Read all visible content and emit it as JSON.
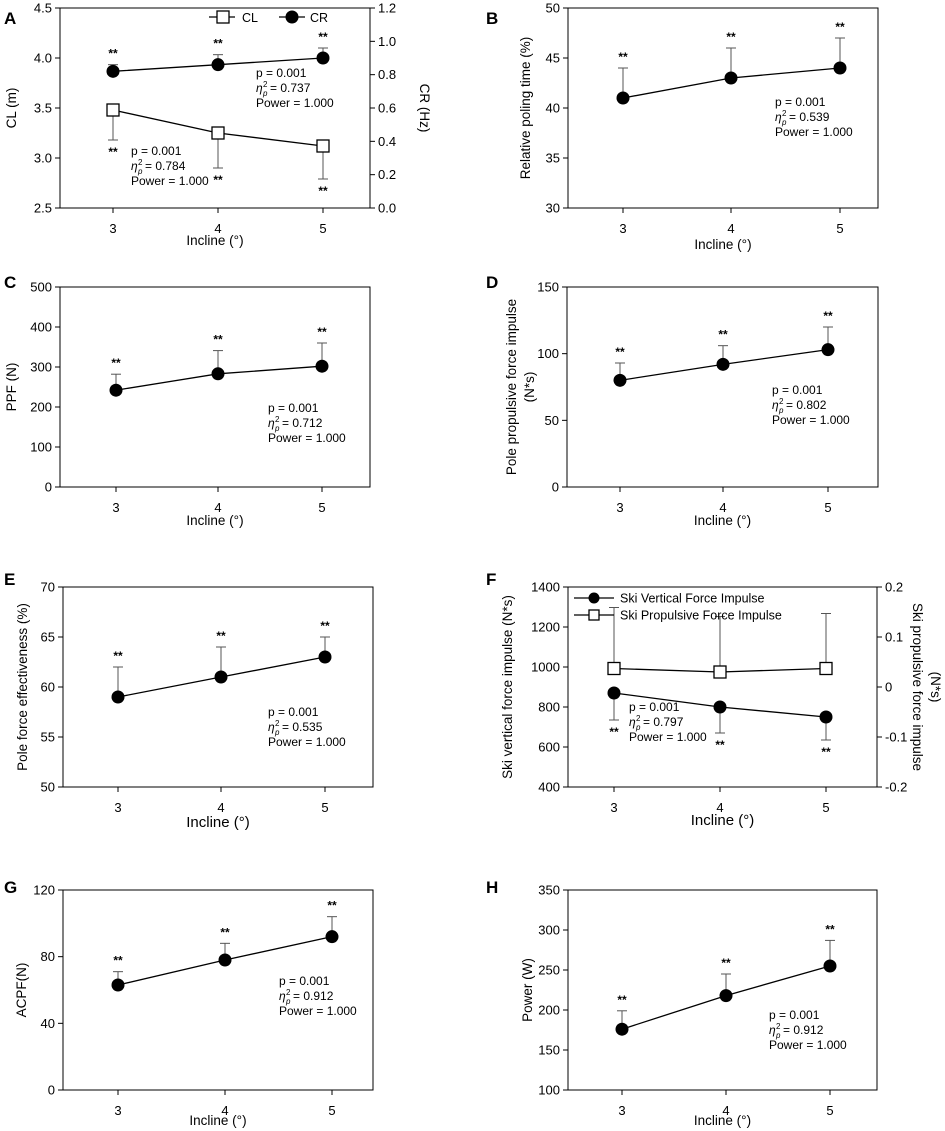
{
  "chart_data": [
    {
      "id": "A",
      "type": "line",
      "letter": "A",
      "xlabel": "Incline (°)",
      "ylabel": "CL (m)",
      "y2label": "CR (Hz)",
      "x": [
        3,
        4,
        5
      ],
      "ylim": [
        2.5,
        4.5
      ],
      "yticks": [
        2.5,
        3.0,
        3.5,
        4.0,
        4.5
      ],
      "ytick_labels": [
        "2.5",
        "3.0",
        "3.5",
        "4.0",
        "4.5"
      ],
      "y2lim": [
        0.0,
        1.2
      ],
      "y2ticks": [
        0.0,
        0.2,
        0.4,
        0.6,
        0.8,
        1.0,
        1.2
      ],
      "y2tick_labels": [
        "0.0",
        "0.2",
        "0.4",
        "0.6",
        "0.8",
        "1.0",
        "1.2"
      ],
      "legend": [
        "CL",
        "CR"
      ],
      "series": [
        {
          "name": "CL",
          "marker": "square",
          "axis": "y",
          "values": [
            3.48,
            3.25,
            3.12
          ],
          "error": [
            0.3,
            0.35,
            0.33
          ],
          "error_dir": "down",
          "sig": [
            "**",
            "**",
            "**"
          ]
        },
        {
          "name": "CR",
          "marker": "circle",
          "axis": "y2",
          "values": [
            0.82,
            0.86,
            0.9
          ],
          "error": [
            0.04,
            0.06,
            0.06
          ],
          "error_dir": "up",
          "sig": [
            "**",
            "**",
            "**"
          ]
        }
      ],
      "stats": [
        {
          "p": "p = 0.001",
          "eta": "= 0.737",
          "power": "Power = 1.000"
        },
        {
          "p": "p = 0.001",
          "eta": "= 0.784",
          "power": "Power = 1.000"
        }
      ]
    },
    {
      "id": "B",
      "type": "line",
      "letter": "B",
      "xlabel": "Incline (°)",
      "ylabel": "Relative poling time (%)",
      "x": [
        3,
        4,
        5
      ],
      "ylim": [
        30,
        50
      ],
      "yticks": [
        30,
        35,
        40,
        45,
        50
      ],
      "ytick_labels": [
        "30",
        "35",
        "40",
        "45",
        "50"
      ],
      "series": [
        {
          "name": "Relative poling time",
          "marker": "circle",
          "axis": "y",
          "values": [
            41,
            43,
            44
          ],
          "error": [
            3,
            3,
            3
          ],
          "error_dir": "up",
          "sig": [
            "**",
            "**",
            "**"
          ]
        }
      ],
      "stats": [
        {
          "p": "p = 0.001",
          "eta": "= 0.539",
          "power": "Power = 1.000"
        }
      ]
    },
    {
      "id": "C",
      "type": "line",
      "letter": "C",
      "xlabel": "Incline (°)",
      "ylabel": "PPF (N)",
      "x": [
        3,
        4,
        5
      ],
      "ylim": [
        0,
        500
      ],
      "yticks": [
        0,
        100,
        200,
        300,
        400,
        500
      ],
      "ytick_labels": [
        "0",
        "100",
        "200",
        "300",
        "400",
        "500"
      ],
      "series": [
        {
          "name": "PPF",
          "marker": "circle",
          "axis": "y",
          "values": [
            242,
            283,
            302
          ],
          "error": [
            40,
            58,
            58
          ],
          "error_dir": "up",
          "sig": [
            "**",
            "**",
            "**"
          ]
        }
      ],
      "stats": [
        {
          "p": "p = 0.001",
          "eta": "= 0.712",
          "power": "Power = 1.000"
        }
      ]
    },
    {
      "id": "D",
      "type": "line",
      "letter": "D",
      "xlabel": "Incline (°)",
      "ylabel": "Pole propulsive force impulse",
      "ylabel2": "(N*s)",
      "x": [
        3,
        4,
        5
      ],
      "ylim": [
        0,
        150
      ],
      "yticks": [
        0,
        50,
        100,
        150
      ],
      "ytick_labels": [
        "0",
        "50",
        "100",
        "150"
      ],
      "series": [
        {
          "name": "Pole propulsive force impulse",
          "marker": "circle",
          "axis": "y",
          "values": [
            80,
            92,
            103
          ],
          "error": [
            13,
            14,
            17
          ],
          "error_dir": "up",
          "sig": [
            "**",
            "**",
            "**"
          ]
        }
      ],
      "stats": [
        {
          "p": "p = 0.001",
          "eta": "= 0.802",
          "power": "Power = 1.000"
        }
      ]
    },
    {
      "id": "E",
      "type": "line",
      "letter": "E",
      "xlabel": "Incline (°)",
      "ylabel": "Pole force effectiveness (%)",
      "x": [
        3,
        4,
        5
      ],
      "ylim": [
        50,
        70
      ],
      "yticks": [
        50,
        55,
        60,
        65,
        70
      ],
      "ytick_labels": [
        "50",
        "55",
        "60",
        "65",
        "70"
      ],
      "series": [
        {
          "name": "Pole force effectiveness",
          "marker": "circle",
          "axis": "y",
          "values": [
            59,
            61,
            63
          ],
          "error": [
            3,
            3,
            2
          ],
          "error_dir": "up",
          "sig": [
            "**",
            "**",
            "**"
          ]
        }
      ],
      "stats": [
        {
          "p": "p = 0.001",
          "eta": "= 0.535",
          "power": "Power = 1.000"
        }
      ]
    },
    {
      "id": "F",
      "type": "line",
      "letter": "F",
      "xlabel": "Incline (°)",
      "ylabel": "Ski vertical force impulse (N*s)",
      "y2label": "Ski propulsive force impulse",
      "y2label2": "(N*s)",
      "x": [
        3,
        4,
        5
      ],
      "ylim": [
        400,
        1400
      ],
      "yticks": [
        400,
        600,
        800,
        1000,
        1200,
        1400
      ],
      "ytick_labels": [
        "400",
        "600",
        "800",
        "1000",
        "1200",
        "1400"
      ],
      "y2lim": [
        -0.2,
        0.2
      ],
      "y2ticks": [
        -0.2,
        -0.1,
        0,
        0.1,
        0.2
      ],
      "y2tick_labels": [
        "-0.2",
        "-0.1",
        "0",
        "0.1",
        "0.2"
      ],
      "legend": [
        "Ski Vertical Force Impulse",
        "Ski Propulsive Force Impulse"
      ],
      "series": [
        {
          "name": "Ski Vertical Force Impulse",
          "marker": "circle",
          "axis": "y",
          "values": [
            870,
            800,
            750
          ],
          "error": [
            135,
            130,
            115
          ],
          "error_dir": "down",
          "sig": [
            "**",
            "**",
            "**"
          ]
        },
        {
          "name": "Ski Propulsive Force Impulse",
          "marker": "square",
          "axis": "y2",
          "values": [
            0.037,
            0.03,
            0.037
          ],
          "error": [
            0.122,
            0.111,
            0.11
          ],
          "error_dir": "up",
          "sig": [
            "",
            "",
            ""
          ]
        }
      ],
      "stats": [
        {
          "p": "p = 0.001",
          "eta": "= 0.797",
          "power": "Power = 1.000"
        }
      ]
    },
    {
      "id": "G",
      "type": "line",
      "letter": "G",
      "xlabel": "Incline (°)",
      "ylabel": "ACPF(N)",
      "x": [
        3,
        4,
        5
      ],
      "ylim": [
        0,
        120
      ],
      "yticks": [
        0,
        40,
        80,
        120
      ],
      "ytick_labels": [
        "0",
        "40",
        "80",
        "120"
      ],
      "series": [
        {
          "name": "ACPF",
          "marker": "circle",
          "axis": "y",
          "values": [
            63,
            78,
            92
          ],
          "error": [
            8,
            10,
            12
          ],
          "error_dir": "up",
          "sig": [
            "**",
            "**",
            "**"
          ]
        }
      ],
      "stats": [
        {
          "p": "p = 0.001",
          "eta": "= 0.912",
          "power": "Power = 1.000"
        }
      ]
    },
    {
      "id": "H",
      "type": "line",
      "letter": "H",
      "xlabel": "Incline (°)",
      "ylabel": "Power (W)",
      "x": [
        3,
        4,
        5
      ],
      "ylim": [
        100,
        350
      ],
      "yticks": [
        100,
        150,
        200,
        250,
        300,
        350
      ],
      "ytick_labels": [
        "100",
        "150",
        "200",
        "250",
        "300",
        "350"
      ],
      "series": [
        {
          "name": "Power",
          "marker": "circle",
          "axis": "y",
          "values": [
            176,
            218,
            255
          ],
          "error": [
            23,
            27,
            32
          ],
          "error_dir": "up",
          "sig": [
            "**",
            "**",
            "**"
          ]
        }
      ],
      "stats": [
        {
          "p": "p = 0.001",
          "eta": "= 0.912",
          "power": "Power = 1.000"
        }
      ]
    }
  ]
}
